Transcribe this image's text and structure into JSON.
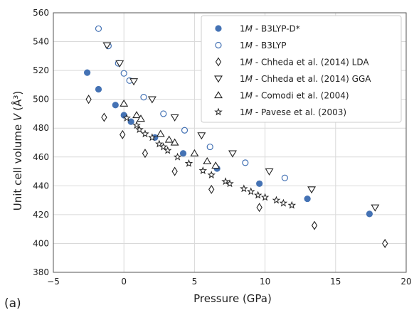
{
  "panel_label": "(a)",
  "chart_data": {
    "type": "scatter",
    "xlabel": "Pressure (GPa)",
    "ylabel_prefix": "Unit cell volume ",
    "ylabel_var": "V",
    "ylabel_unit": "(Å³)",
    "xlim": [
      -5,
      20
    ],
    "ylim": [
      380,
      560
    ],
    "xticks": [
      -5,
      0,
      5,
      10,
      15,
      20
    ],
    "yticks": [
      380,
      400,
      420,
      440,
      460,
      480,
      500,
      520,
      540,
      560
    ],
    "grid": true,
    "legend_position": "top-right",
    "colors": {
      "accent": "#4472b4",
      "mark": "#222222",
      "grid": "#d9d9d9"
    },
    "series": [
      {
        "legend_prefix": "1",
        "legend_italic": "M",
        "legend_suffix": " - B3LYP-D*",
        "marker": "circle-filled",
        "color": "#4472b4",
        "points": [
          [
            -2.6,
            518.5
          ],
          [
            -1.8,
            507
          ],
          [
            -0.6,
            496
          ],
          [
            0,
            489
          ],
          [
            0.5,
            484.5
          ],
          [
            2.2,
            473.5
          ],
          [
            4.2,
            462.5
          ],
          [
            6.6,
            452
          ],
          [
            9.6,
            441.5
          ],
          [
            13,
            431
          ],
          [
            17.4,
            420.5
          ]
        ]
      },
      {
        "legend_prefix": "1",
        "legend_italic": "M",
        "legend_suffix": " - B3LYP",
        "marker": "circle-open",
        "color": "#4472b4",
        "points": [
          [
            -1.8,
            549
          ],
          [
            -1.1,
            537
          ],
          [
            -0.4,
            525
          ],
          [
            0,
            518
          ],
          [
            0.4,
            513
          ],
          [
            1.4,
            501.5
          ],
          [
            2.8,
            490
          ],
          [
            4.3,
            478.5
          ],
          [
            6.1,
            467
          ],
          [
            8.6,
            456
          ],
          [
            11.4,
            445.5
          ]
        ]
      },
      {
        "legend_prefix": "1",
        "legend_italic": "M",
        "legend_suffix": " - Chheda et al. (2014) LDA",
        "marker": "diamond-open",
        "color": "#222222",
        "points": [
          [
            -2.5,
            500
          ],
          [
            -1.4,
            487.5
          ],
          [
            -0.1,
            475.5
          ],
          [
            1.5,
            462.5
          ],
          [
            3.6,
            450
          ],
          [
            6.2,
            437.5
          ],
          [
            9.6,
            425
          ],
          [
            13.5,
            412.5
          ],
          [
            18.5,
            400
          ]
        ]
      },
      {
        "legend_prefix": "1",
        "legend_italic": "M",
        "legend_suffix": " - Chheda et al. (2014) GGA",
        "marker": "triangle-down-open",
        "color": "#222222",
        "points": [
          [
            -1.2,
            537.5
          ],
          [
            -0.3,
            525
          ],
          [
            0.7,
            512.5
          ],
          [
            2.0,
            500
          ],
          [
            3.6,
            487.5
          ],
          [
            5.5,
            475
          ],
          [
            7.7,
            462.5
          ],
          [
            10.3,
            450
          ],
          [
            13.3,
            437.5
          ],
          [
            17.8,
            425
          ]
        ]
      },
      {
        "legend_prefix": "1",
        "legend_italic": "M",
        "legend_suffix": " - Comodi et al. (2004)",
        "marker": "triangle-up-open",
        "color": "#222222",
        "points": [
          [
            0,
            497
          ],
          [
            0.9,
            489
          ],
          [
            1.2,
            486.5
          ],
          [
            2.6,
            476
          ],
          [
            3.2,
            472
          ],
          [
            3.6,
            470
          ],
          [
            5.0,
            462.5
          ],
          [
            5.9,
            457
          ],
          [
            6.5,
            454
          ]
        ]
      },
      {
        "legend_prefix": "1",
        "legend_italic": "M",
        "legend_suffix": " - Pavese et al. (2003)",
        "marker": "star",
        "color": "#222222",
        "points": [
          [
            0.2,
            487
          ],
          [
            0.9,
            482
          ],
          [
            1.1,
            479
          ],
          [
            1.5,
            476
          ],
          [
            2.0,
            473.5
          ],
          [
            2.5,
            469
          ],
          [
            2.8,
            467
          ],
          [
            3.1,
            464.5
          ],
          [
            3.8,
            460
          ],
          [
            4.6,
            455.5
          ],
          [
            5.6,
            450.5
          ],
          [
            6.2,
            447.5
          ],
          [
            7.2,
            443
          ],
          [
            7.5,
            441.5
          ],
          [
            8.5,
            438
          ],
          [
            9.0,
            436
          ],
          [
            9.5,
            433.5
          ],
          [
            10,
            432
          ],
          [
            10.8,
            430
          ],
          [
            11.3,
            428
          ],
          [
            11.9,
            426.5
          ]
        ]
      }
    ]
  }
}
